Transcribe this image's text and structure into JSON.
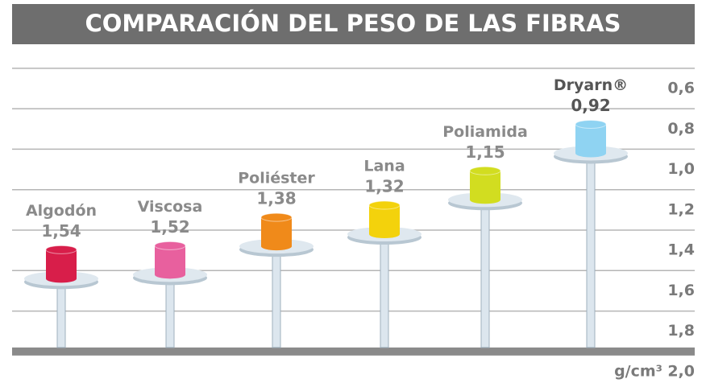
{
  "chart_data": {
    "type": "bar",
    "title": "COMPARACIÓN DEL PESO DE LAS FIBRAS",
    "categories": [
      "Algodón",
      "Viscosa",
      "Poliéster",
      "Lana",
      "Poliamida",
      "Dryarn®"
    ],
    "values": [
      1.54,
      1.52,
      1.38,
      1.32,
      1.15,
      0.92
    ],
    "value_labels": [
      "1,54",
      "1,52",
      "1,38",
      "1,32",
      "1,15",
      "0,92"
    ],
    "colors": [
      "#d81e4a",
      "#e8609e",
      "#f08a1a",
      "#f3d20c",
      "#d2dd20",
      "#8fd3f2"
    ],
    "ylabel": "g/cm³",
    "ylim": [
      0.6,
      2.0
    ],
    "yticks": [
      {
        "value": 0.6,
        "label": "0,6"
      },
      {
        "value": 0.8,
        "label": "0,8"
      },
      {
        "value": 1.0,
        "label": "1,0"
      },
      {
        "value": 1.2,
        "label": "1,2"
      },
      {
        "value": 1.4,
        "label": "1,4"
      },
      {
        "value": 1.6,
        "label": "1,6"
      },
      {
        "value": 1.8,
        "label": "1,8"
      },
      {
        "value": 2.0,
        "label": "2,0"
      }
    ],
    "inverted": true,
    "grid": true
  }
}
